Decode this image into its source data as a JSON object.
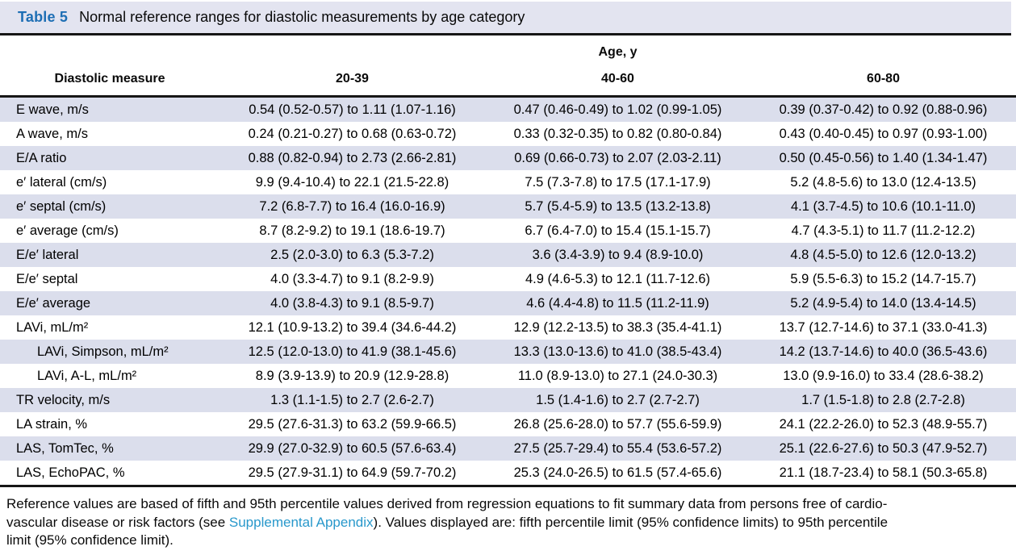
{
  "title_bar": {
    "label": "Table 5",
    "title": "Normal reference ranges for diastolic measurements by age category"
  },
  "table": {
    "age_header": "Age, y",
    "measure_header": "Diastolic measure",
    "columns": [
      "20-39",
      "40-60",
      "60-80"
    ],
    "rows": [
      {
        "label": "E wave, m/s",
        "indent": false,
        "values": [
          "0.54 (0.52-0.57) to 1.11 (1.07-1.16)",
          "0.47 (0.46-0.49) to 1.02 (0.99-1.05)",
          "0.39 (0.37-0.42) to 0.92 (0.88-0.96)"
        ]
      },
      {
        "label": "A wave, m/s",
        "indent": false,
        "values": [
          "0.24 (0.21-0.27) to 0.68 (0.63-0.72)",
          "0.33 (0.32-0.35) to 0.82 (0.80-0.84)",
          "0.43 (0.40-0.45) to 0.97 (0.93-1.00)"
        ]
      },
      {
        "label": "E/A ratio",
        "indent": false,
        "values": [
          "0.88 (0.82-0.94) to 2.73 (2.66-2.81)",
          "0.69 (0.66-0.73) to 2.07 (2.03-2.11)",
          "0.50 (0.45-0.56) to 1.40 (1.34-1.47)"
        ]
      },
      {
        "label": "e′ lateral (cm/s)",
        "indent": false,
        "values": [
          "9.9 (9.4-10.4) to 22.1 (21.5-22.8)",
          "7.5 (7.3-7.8) to 17.5 (17.1-17.9)",
          "5.2 (4.8-5.6) to 13.0 (12.4-13.5)"
        ]
      },
      {
        "label": "e′ septal (cm/s)",
        "indent": false,
        "values": [
          "7.2 (6.8-7.7) to 16.4 (16.0-16.9)",
          "5.7 (5.4-5.9) to 13.5 (13.2-13.8)",
          "4.1 (3.7-4.5) to 10.6 (10.1-11.0)"
        ]
      },
      {
        "label": "e′ average (cm/s)",
        "indent": false,
        "values": [
          "8.7 (8.2-9.2) to 19.1 (18.6-19.7)",
          "6.7 (6.4-7.0) to 15.4 (15.1-15.7)",
          "4.7 (4.3-5.1) to 11.7 (11.2-12.2)"
        ]
      },
      {
        "label": "E/e′ lateral",
        "indent": false,
        "values": [
          "2.5 (2.0-3.0) to 6.3 (5.3-7.2)",
          "3.6 (3.4-3.9) to 9.4 (8.9-10.0)",
          "4.8 (4.5-5.0) to 12.6 (12.0-13.2)"
        ]
      },
      {
        "label": "E/e′ septal",
        "indent": false,
        "values": [
          "4.0 (3.3-4.7) to 9.1 (8.2-9.9)",
          "4.9 (4.6-5.3) to 12.1 (11.7-12.6)",
          "5.9 (5.5-6.3) to 15.2 (14.7-15.7)"
        ]
      },
      {
        "label": "E/e′ average",
        "indent": false,
        "values": [
          "4.0 (3.8-4.3) to 9.1 (8.5-9.7)",
          "4.6 (4.4-4.8) to 11.5 (11.2-11.9)",
          "5.2 (4.9-5.4) to 14.0 (13.4-14.5)"
        ]
      },
      {
        "label": "LAVi, mL/m²",
        "indent": false,
        "values": [
          "12.1 (10.9-13.2) to 39.4 (34.6-44.2)",
          "12.9 (12.2-13.5) to 38.3 (35.4-41.1)",
          "13.7 (12.7-14.6) to 37.1 (33.0-41.3)"
        ]
      },
      {
        "label": "LAVi, Simpson, mL/m²",
        "indent": true,
        "values": [
          "12.5 (12.0-13.0) to 41.9 (38.1-45.6)",
          "13.3 (13.0-13.6) to 41.0 (38.5-43.4)",
          "14.2 (13.7-14.6) to 40.0 (36.5-43.6)"
        ]
      },
      {
        "label": "LAVi, A-L, mL/m²",
        "indent": true,
        "values": [
          "8.9 (3.9-13.9) to 20.9 (12.9-28.8)",
          "11.0 (8.9-13.0) to 27.1 (24.0-30.3)",
          "13.0 (9.9-16.0) to 33.4 (28.6-38.2)"
        ]
      },
      {
        "label": "TR velocity, m/s",
        "indent": false,
        "values": [
          "1.3 (1.1-1.5) to 2.7 (2.6-2.7)",
          "1.5 (1.4-1.6) to 2.7 (2.7-2.7)",
          "1.7 (1.5-1.8) to 2.8 (2.7-2.8)"
        ]
      },
      {
        "label": "LA strain, %",
        "indent": false,
        "values": [
          "29.5 (27.6-31.3) to 63.2 (59.9-66.5)",
          "26.8 (25.6-28.0) to 57.7 (55.6-59.9)",
          "24.1 (22.2-26.0) to 52.3 (48.9-55.7)"
        ]
      },
      {
        "label": "LAS, TomTec, %",
        "indent": false,
        "values": [
          "29.9 (27.0-32.9) to 60.5 (57.6-63.4)",
          "27.5 (25.7-29.4) to 55.4 (53.6-57.2)",
          "25.1 (22.6-27.6) to 50.3 (47.9-52.7)"
        ]
      },
      {
        "label": "LAS, EchoPAC, %",
        "indent": false,
        "values": [
          "29.5 (27.9-31.1) to 64.9 (59.7-70.2)",
          "25.3 (24.0-26.5) to 61.5 (57.4-65.6)",
          "21.1 (18.7-23.4) to 58.1 (50.3-65.8)"
        ]
      }
    ]
  },
  "footnote": {
    "text_before_link": "Reference values are based of fifth and 95th percentile values derived from regression equations to fit summary data from persons free of cardio-\nvascular disease or risk factors (see ",
    "link_text": "Supplemental Appendix",
    "text_after_link": "). Values displayed are: fifth percentile limit (95% confidence limits) to 95th percentile\nlimit (95% confidence limit)."
  },
  "colors": {
    "table_number_blue": "#1d6eb4",
    "link_blue": "#2898cb",
    "row_shade": "#dbdeec",
    "title_bar_bg": "#e3e4f0",
    "rule_black": "#161616"
  }
}
